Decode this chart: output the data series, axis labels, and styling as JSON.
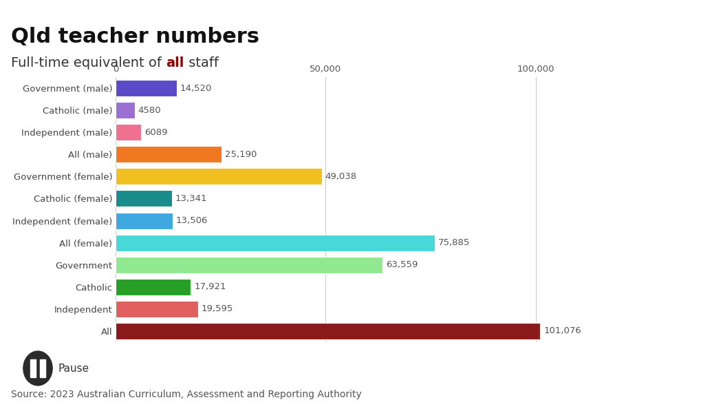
{
  "title": "Qld teacher numbers",
  "subtitle_plain": "Full-time equivalent of ",
  "subtitle_bold": "all",
  "subtitle_end": " staff",
  "source": "Source: 2023 Australian Curriculum, Assessment and Reporting Authority",
  "categories": [
    "Government (male)",
    "Catholic (male)",
    "Independent (male)",
    "All (male)",
    "Government (female)",
    "Catholic (female)",
    "Independent (female)",
    "All (female)",
    "Government",
    "Catholic",
    "Independent",
    "All"
  ],
  "values": [
    14520,
    4580,
    6089,
    25190,
    49038,
    13341,
    13506,
    75885,
    63559,
    17921,
    19595,
    101076
  ],
  "colors": [
    "#5b4bc8",
    "#9b6fd4",
    "#f07090",
    "#f07820",
    "#f0c020",
    "#1a8c8c",
    "#40a8e0",
    "#48d8d8",
    "#90e890",
    "#28a028",
    "#e06060",
    "#8b1a1a"
  ],
  "value_labels": [
    "14,520",
    "4580",
    "6089",
    "25,190",
    "49,038",
    "13,341",
    "13,506",
    "75,885",
    "63,559",
    "17,921",
    "19,595",
    "101,076"
  ],
  "xlim": [
    0,
    110000
  ],
  "xticks": [
    0,
    50000,
    100000
  ],
  "xtick_labels": [
    "0",
    "50,000",
    "100,000"
  ],
  "bar_height": 0.75,
  "background_color": "#ffffff",
  "title_fontsize": 22,
  "subtitle_fontsize": 14,
  "label_fontsize": 9.5,
  "value_fontsize": 9.5,
  "source_fontsize": 10,
  "bold_color": "#8b0000",
  "pause_button_color": "#2a2a2a",
  "pause_text": "Pause"
}
